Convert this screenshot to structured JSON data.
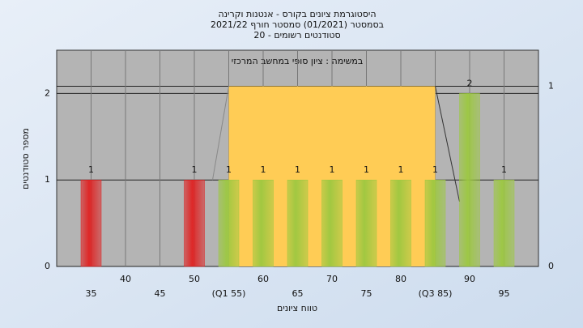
{
  "chart_data": {
    "type": "bar",
    "title": [
      "היסטוגרמת ציונים בקורס - אנטנות וקרינה",
      "בסמסטר  (01/2021)  סמסטר חורף 2021/22",
      "סטודנטים רשומים - 20"
    ],
    "subtitle": "במשימה : ציון סופי במחשב המרכזי",
    "x_label": "טווח ציונים",
    "y_label": "מספר סטודנטים",
    "x": [
      35,
      40,
      45,
      50,
      55,
      60,
      65,
      70,
      75,
      80,
      85,
      90,
      95
    ],
    "values": [
      1,
      0,
      0,
      1,
      1,
      1,
      1,
      1,
      1,
      1,
      1,
      2,
      1
    ],
    "colors": [
      "#e02020",
      "#e02020",
      "#e02020",
      "#e02020",
      "#9cc840",
      "#9cc840",
      "#9cc840",
      "#9cc840",
      "#9cc840",
      "#9cc840",
      "#9cc840",
      "#9cc840",
      "#9cc840"
    ],
    "quartiles": [
      55,
      85
    ],
    "quartile_color": "#ffcc55",
    "xlim": [
      30,
      100
    ],
    "xticks": [
      35,
      40,
      45,
      50,
      {
        "value": 55,
        "label": "(Q1 55)"
      },
      60,
      65,
      70,
      75,
      80,
      {
        "value": 85,
        "label": "(Q3 85)"
      },
      90,
      95
    ],
    "ylim": [
      0,
      2.5
    ],
    "yticks": [
      0,
      1,
      2
    ],
    "y2lim": [
      0,
      1.2
    ],
    "y2ticks": [
      0,
      1
    ],
    "grid": true
  }
}
